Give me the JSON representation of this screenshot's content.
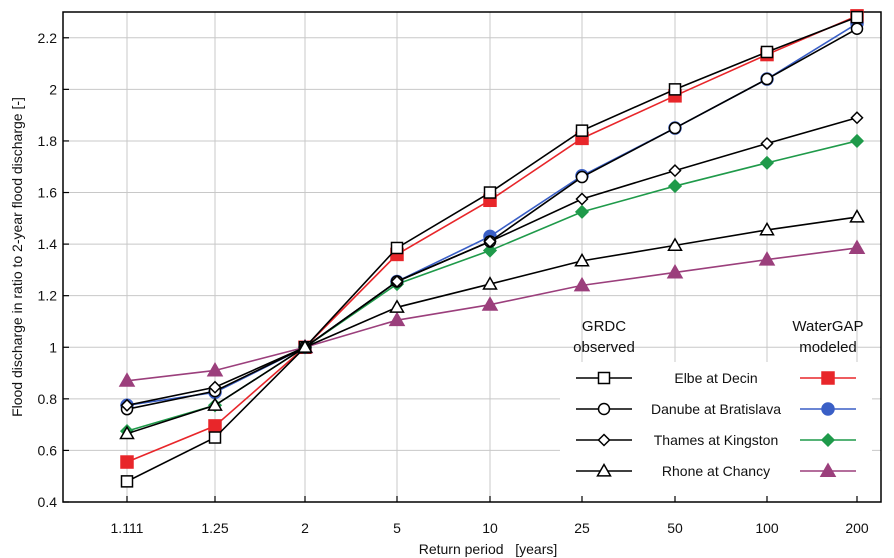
{
  "chart_data": {
    "type": "line",
    "title": "",
    "xlabel": "Return period   [years]",
    "ylabel": "Flood discharge in ratio to 2-year flood discharge [-]",
    "categories": [
      "1.111",
      "1.25",
      "2",
      "5",
      "10",
      "25",
      "50",
      "100",
      "200"
    ],
    "ylim": [
      0.4,
      2.3
    ],
    "yticks": [
      0.4,
      0.6,
      0.8,
      1,
      1.2,
      1.4,
      1.6,
      1.8,
      2,
      2.2
    ],
    "ytick_labels": [
      "0.4",
      "0.6",
      "0.8",
      "1",
      "1.2",
      "1.4",
      "1.6",
      "1.8",
      "2",
      "2.2"
    ],
    "grid": true,
    "legend": {
      "placement": "bottom-right",
      "observed_header": [
        "GRDC",
        "observed"
      ],
      "modeled_header": [
        "WaterGAP",
        "modeled"
      ],
      "rows": [
        "Elbe at Decin",
        "Danube at Bratislava",
        "Thames at Kingston",
        "Rhone at Chancy"
      ]
    },
    "series": [
      {
        "name": "Elbe at Decin",
        "group": "observed",
        "marker": "square-open",
        "color": "#000000",
        "values": [
          0.48,
          0.65,
          1.0,
          1.385,
          1.6,
          1.84,
          2.0,
          2.145,
          2.28
        ]
      },
      {
        "name": "Danube at Bratislava",
        "group": "observed",
        "marker": "circle-open",
        "color": "#000000",
        "values": [
          0.76,
          0.83,
          1.0,
          1.255,
          1.41,
          1.66,
          1.85,
          2.04,
          2.235
        ]
      },
      {
        "name": "Thames at Kingston",
        "group": "observed",
        "marker": "diamond-open",
        "color": "#000000",
        "values": [
          0.775,
          0.845,
          1.0,
          1.255,
          1.41,
          1.575,
          1.685,
          1.79,
          1.89
        ]
      },
      {
        "name": "Rhone at Chancy",
        "group": "observed",
        "marker": "triangle-open",
        "color": "#000000",
        "values": [
          0.665,
          0.775,
          1.0,
          1.155,
          1.245,
          1.335,
          1.395,
          1.455,
          1.505
        ]
      },
      {
        "name": "Elbe at Decin",
        "group": "modeled",
        "marker": "square-filled",
        "color": "#e8262a",
        "values": [
          0.555,
          0.695,
          1.0,
          1.36,
          1.57,
          1.81,
          1.975,
          2.135,
          2.285
        ]
      },
      {
        "name": "Danube at Bratislava",
        "group": "modeled",
        "marker": "circle-filled",
        "color": "#3a5fc6",
        "values": [
          0.775,
          0.825,
          1.0,
          1.255,
          1.43,
          1.665,
          1.85,
          2.04,
          2.255
        ]
      },
      {
        "name": "Thames at Kingston",
        "group": "modeled",
        "marker": "diamond-filled",
        "color": "#1f9a4a",
        "values": [
          0.675,
          0.775,
          1.0,
          1.245,
          1.375,
          1.525,
          1.625,
          1.715,
          1.8
        ]
      },
      {
        "name": "Rhone at Chancy",
        "group": "modeled",
        "marker": "triangle-filled",
        "color": "#9b3f7c",
        "values": [
          0.87,
          0.91,
          1.0,
          1.105,
          1.165,
          1.24,
          1.29,
          1.34,
          1.385
        ]
      }
    ]
  }
}
